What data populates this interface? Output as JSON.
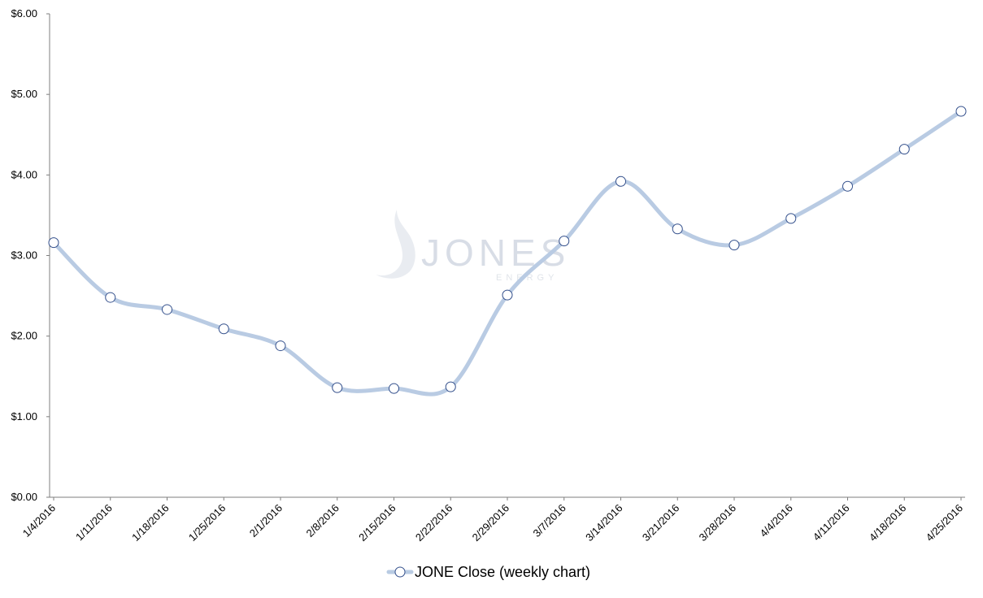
{
  "colors": {
    "series_line": "#b9cbe3",
    "marker_fill": "#ffffff",
    "marker_stroke": "#34508c",
    "axis": "#7f7f7f",
    "watermark": "#d8dde6"
  },
  "watermark": {
    "logo_text": "JONES",
    "sub_text": "ENERGY"
  },
  "chart_data": {
    "type": "line",
    "title": "",
    "xlabel": "",
    "ylabel": "",
    "ylim": [
      0,
      6
    ],
    "yticks": [
      0,
      1,
      2,
      3,
      4,
      5,
      6
    ],
    "ytick_labels": [
      "$0.00",
      "$1.00",
      "$2.00",
      "$3.00",
      "$4.00",
      "$5.00",
      "$6.00"
    ],
    "categories": [
      "1/4/2016",
      "1/11/2016",
      "1/18/2016",
      "1/25/2016",
      "2/1/2016",
      "2/8/2016",
      "2/15/2016",
      "2/22/2016",
      "2/29/2016",
      "3/7/2016",
      "3/14/2016",
      "3/21/2016",
      "3/28/2016",
      "4/4/2016",
      "4/11/2016",
      "4/18/2016",
      "4/25/2016"
    ],
    "series": [
      {
        "name": "JONE Close (weekly chart)",
        "values": [
          3.16,
          2.48,
          2.33,
          2.09,
          1.88,
          1.36,
          1.35,
          1.37,
          2.51,
          3.18,
          3.92,
          3.33,
          3.13,
          3.46,
          3.86,
          4.32,
          4.79
        ]
      }
    ],
    "smooth": true,
    "grid": false,
    "legend": {
      "position": "bottom-center"
    }
  }
}
